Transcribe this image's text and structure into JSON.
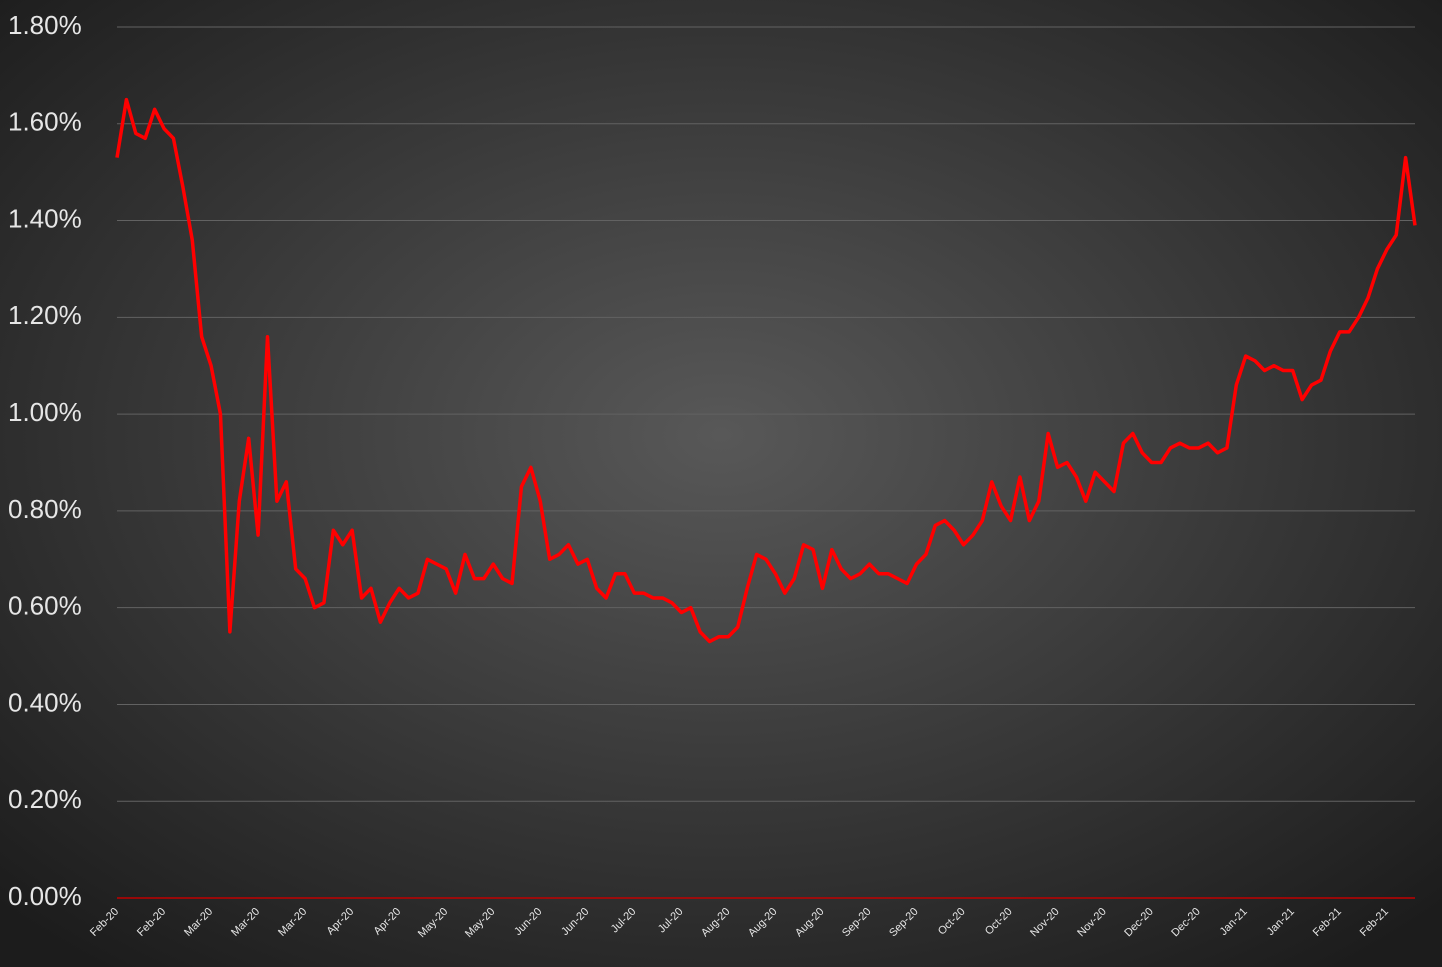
{
  "chart_data": {
    "type": "line",
    "color": "#ff0000",
    "axis_color": "#c00000",
    "grid": true,
    "ylim": [
      0,
      1.8
    ],
    "yticks": [
      {
        "value": 0,
        "label": "0.00%"
      },
      {
        "value": 0.2,
        "label": "0.20%"
      },
      {
        "value": 0.4,
        "label": "0.40%"
      },
      {
        "value": 0.6,
        "label": "0.60%"
      },
      {
        "value": 0.8,
        "label": "0.80%"
      },
      {
        "value": 1.0,
        "label": "1.00%"
      },
      {
        "value": 1.2,
        "label": "1.20%"
      },
      {
        "value": 1.4,
        "label": "1.40%"
      },
      {
        "value": 1.6,
        "label": "1.60%"
      },
      {
        "value": 1.8,
        "label": "1.80%"
      }
    ],
    "categories": [
      "Feb-20",
      null,
      null,
      null,
      null,
      "Feb-20",
      null,
      null,
      null,
      null,
      "Mar-20",
      null,
      null,
      null,
      null,
      "Mar-20",
      null,
      null,
      null,
      null,
      "Mar-20",
      null,
      null,
      null,
      null,
      "Apr-20",
      null,
      null,
      null,
      null,
      "Apr-20",
      null,
      null,
      null,
      null,
      "May-20",
      null,
      null,
      null,
      null,
      "May-20",
      null,
      null,
      null,
      null,
      "Jun-20",
      null,
      null,
      null,
      null,
      "Jun-20",
      null,
      null,
      null,
      null,
      "Jul-20",
      null,
      null,
      null,
      null,
      "Jul-20",
      null,
      null,
      null,
      null,
      "Aug-20",
      null,
      null,
      null,
      null,
      "Aug-20",
      null,
      null,
      null,
      null,
      "Aug-20",
      null,
      null,
      null,
      null,
      "Sep-20",
      null,
      null,
      null,
      null,
      "Sep-20",
      null,
      null,
      null,
      null,
      "Oct-20",
      null,
      null,
      null,
      null,
      "Oct-20",
      null,
      null,
      null,
      null,
      "Nov-20",
      null,
      null,
      null,
      null,
      "Nov-20",
      null,
      null,
      null,
      null,
      "Dec-20",
      null,
      null,
      null,
      null,
      "Dec-20",
      null,
      null,
      null,
      null,
      "Jan-21",
      null,
      null,
      null,
      null,
      "Jan-21",
      null,
      null,
      null,
      null,
      "Feb-21",
      null,
      null,
      null,
      null,
      "Feb-21",
      null,
      null,
      null
    ],
    "values": [
      1.53,
      1.65,
      1.58,
      1.57,
      1.63,
      1.59,
      1.57,
      1.47,
      1.36,
      1.16,
      1.1,
      1.0,
      0.55,
      0.82,
      0.95,
      0.75,
      1.16,
      0.82,
      0.86,
      0.68,
      0.66,
      0.6,
      0.61,
      0.76,
      0.73,
      0.76,
      0.62,
      0.64,
      0.57,
      0.61,
      0.64,
      0.62,
      0.63,
      0.7,
      0.69,
      0.68,
      0.63,
      0.71,
      0.66,
      0.66,
      0.69,
      0.66,
      0.65,
      0.85,
      0.89,
      0.82,
      0.7,
      0.71,
      0.73,
      0.69,
      0.7,
      0.64,
      0.62,
      0.67,
      0.67,
      0.63,
      0.63,
      0.62,
      0.62,
      0.61,
      0.59,
      0.6,
      0.55,
      0.53,
      0.54,
      0.54,
      0.56,
      0.64,
      0.71,
      0.7,
      0.67,
      0.63,
      0.66,
      0.73,
      0.72,
      0.64,
      0.72,
      0.68,
      0.66,
      0.67,
      0.69,
      0.67,
      0.67,
      0.66,
      0.65,
      0.69,
      0.71,
      0.77,
      0.78,
      0.76,
      0.73,
      0.75,
      0.78,
      0.86,
      0.81,
      0.78,
      0.87,
      0.78,
      0.82,
      0.96,
      0.89,
      0.9,
      0.87,
      0.82,
      0.88,
      0.86,
      0.84,
      0.94,
      0.96,
      0.92,
      0.9,
      0.9,
      0.93,
      0.94,
      0.93,
      0.93,
      0.94,
      0.92,
      0.93,
      1.06,
      1.12,
      1.11,
      1.09,
      1.1,
      1.09,
      1.09,
      1.03,
      1.06,
      1.07,
      1.13,
      1.17,
      1.17,
      1.2,
      1.24,
      1.3,
      1.34,
      1.37,
      1.53,
      1.39
    ]
  }
}
